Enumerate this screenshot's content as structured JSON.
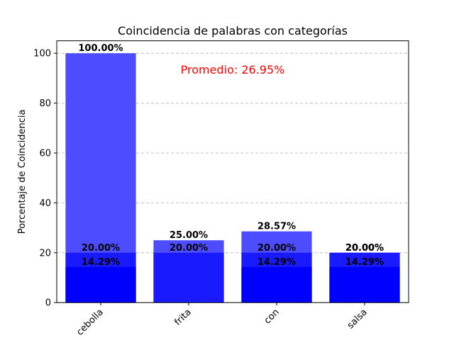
{
  "chart_data": {
    "type": "bar",
    "title": "Coincidencia de palabras con categorías",
    "xlabel": "",
    "ylabel": "Porcentaje de Coincidencia",
    "categories": [
      "cebolla",
      "frita",
      "con",
      "salsa"
    ],
    "series": [
      {
        "values": [
          100.0,
          25.0,
          28.57,
          20.0
        ],
        "labels": [
          "100.00%",
          "25.00%",
          "28.57%",
          "20.00%"
        ],
        "color": "#4d4dff"
      },
      {
        "values": [
          20.0,
          20.0,
          20.0,
          20.0
        ],
        "labels": [
          "20.00%",
          "20.00%",
          "20.00%",
          "20.00%"
        ],
        "color": "#1a1aff"
      },
      {
        "values": [
          14.29,
          0,
          14.29,
          14.29
        ],
        "labels": [
          "14.29%",
          "",
          "14.29%",
          "14.29%"
        ],
        "color": "#0000ff"
      }
    ],
    "ylim": [
      0,
      105
    ],
    "yticks": [
      0,
      20,
      40,
      60,
      80,
      100
    ],
    "grid": "y-dashed",
    "annotation": {
      "text": "Promedio: 26.95%",
      "color": "#ff0000"
    }
  }
}
